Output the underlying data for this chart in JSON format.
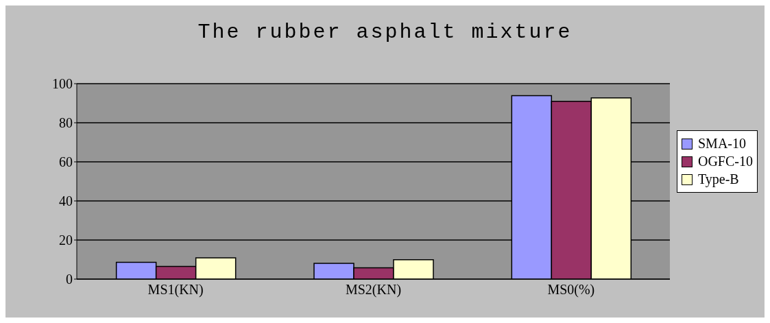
{
  "chart_data": {
    "type": "bar",
    "title": "The rubber asphalt mixture",
    "categories": [
      "MS1(KN)",
      "MS2(KN)",
      "MS0(%)"
    ],
    "series": [
      {
        "name": "SMA-10",
        "color": "#9999ff",
        "values": [
          8.6,
          8.1,
          93.9
        ]
      },
      {
        "name": "OGFC-10",
        "color": "#993366",
        "values": [
          6.5,
          5.8,
          91
        ]
      },
      {
        "name": "Type-B",
        "color": "#ffffcc",
        "values": [
          10.9,
          9.9,
          92.7
        ]
      }
    ],
    "ylim": [
      0,
      100
    ],
    "yticks": [
      0,
      20,
      40,
      60,
      80,
      100
    ],
    "grid": "y",
    "legend": "right"
  }
}
